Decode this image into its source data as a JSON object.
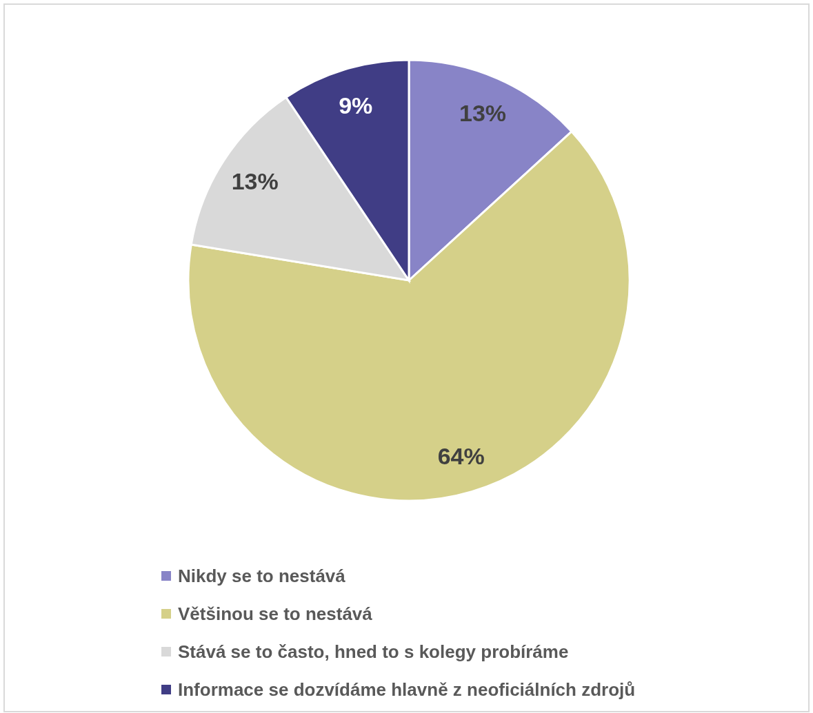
{
  "chart_data": {
    "type": "pie",
    "categories": [
      "Nikdy se to nestává",
      "Většinou se to nestává",
      "Stává se to často, hned to s kolegy probíráme",
      "Informace se dozvídáme hlavně z neoficiálních zdrojů"
    ],
    "values": [
      13.2,
      64.4,
      13.0,
      9.4
    ],
    "colors": [
      "#8884c7",
      "#d5d089",
      "#d9d9d9",
      "#403d85"
    ],
    "value_labels": [
      "13%",
      "64%",
      "13%",
      "9%"
    ],
    "legend": "bottom"
  }
}
